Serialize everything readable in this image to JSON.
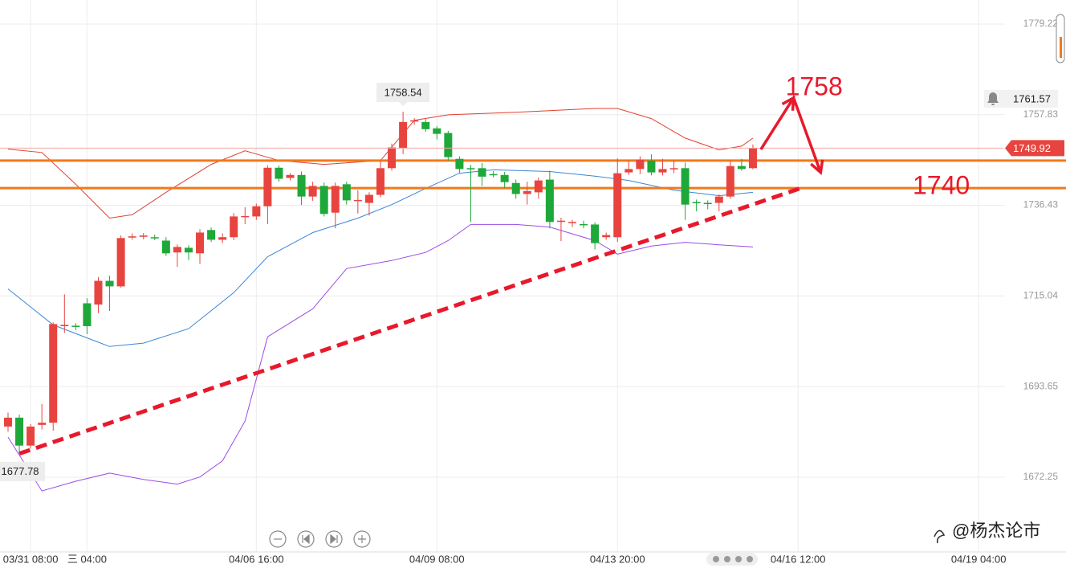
{
  "chart_data": {
    "type": "candlestick",
    "categories": [
      null,
      null,
      "03/31 08:00",
      null,
      null,
      null,
      null,
      "三 04:00",
      null,
      null,
      null,
      null,
      null,
      null,
      null,
      null,
      null,
      null,
      null,
      null,
      null,
      null,
      "04/06 16:00",
      null,
      null,
      null,
      null,
      null,
      null,
      null,
      null,
      null,
      null,
      null,
      null,
      null,
      null,
      null,
      "04/09 08:00",
      null,
      null,
      null,
      null,
      null,
      null,
      null,
      null,
      null,
      null,
      null,
      null,
      null,
      null,
      null,
      "04/13 20:00",
      null,
      null,
      null,
      null,
      null,
      null,
      null,
      null,
      null,
      null,
      null,
      null,
      null,
      null,
      null,
      "04/16 12:00",
      null,
      null,
      null,
      null,
      null,
      null,
      null,
      null,
      null,
      null,
      null,
      null,
      null,
      null,
      null,
      "04/19 04:00",
      null,
      null,
      null
    ],
    "open": [
      1684.2,
      1686.3,
      1679.7,
      1684.6,
      1685.1,
      1707.9,
      1708.0,
      1713.3,
      1713.0,
      1718.6,
      1717.3,
      1728.9,
      1729.0,
      1728.9,
      1728.1,
      1725.3,
      1726.4,
      1725.1,
      1730.6,
      1728.3,
      1728.9,
      1733.7,
      1733.8,
      1736.2,
      1745.3,
      1742.9,
      1743.6,
      1738.5,
      1741.0,
      1734.7,
      1741.4,
      1737.5,
      1737.0,
      1738.9,
      1745.2,
      1749.9,
      1756.2,
      1756.1,
      1754.6,
      1753.5,
      1747.4,
      1745.2,
      1745.2,
      1743.8,
      1743.6,
      1741.7,
      1739.1,
      1739.5,
      1742.5,
      1732.6,
      1732.3,
      1732.0,
      1731.9,
      1728.9,
      1728.9,
      1744.2,
      1745.0,
      1747.0,
      1744.2,
      1745.0,
      1745.2,
      1737.2,
      1737.0,
      1737.0,
      1738.5,
      1745.7,
      1745.2,
      null,
      null,
      null,
      null,
      null,
      null,
      null,
      null,
      null,
      null,
      null,
      null,
      null,
      null,
      null,
      null,
      null,
      null,
      null,
      null,
      null,
      null,
      null
    ],
    "high": [
      1687.5,
      1687.0,
      1684.8,
      1689.5,
      1708.8,
      1715.4,
      1708.6,
      1714.5,
      1719.5,
      1719.8,
      1729.3,
      1729.8,
      1729.9,
      1729.5,
      1728.9,
      1727.2,
      1727.0,
      1730.8,
      1731.2,
      1729.8,
      1734.6,
      1736.0,
      1736.8,
      1745.9,
      1745.8,
      1744.0,
      1744.4,
      1742.0,
      1741.8,
      1741.8,
      1742.0,
      1740.0,
      1739.5,
      1747.0,
      1751.0,
      1758.54,
      1757.0,
      1756.8,
      1755.1,
      1754.0,
      1748.0,
      1746.0,
      1746.4,
      1744.5,
      1744.3,
      1742.5,
      1742.0,
      1743.0,
      1744.6,
      1733.5,
      1733.0,
      1732.8,
      1732.4,
      1730.0,
      1747.5,
      1747.0,
      1748.0,
      1748.5,
      1747.4,
      1747.0,
      1746.5,
      1737.8,
      1737.6,
      1739.0,
      1747.0,
      1747.4,
      1750.8,
      null,
      null,
      null,
      null,
      null,
      null,
      null,
      null,
      null,
      null,
      null,
      null,
      null,
      null,
      null,
      null,
      null,
      null,
      null,
      null,
      null,
      null,
      null
    ],
    "low": [
      1683.0,
      1677.78,
      1679.0,
      1683.5,
      1683.2,
      1706.3,
      1707.0,
      1706.0,
      1711.0,
      1711.5,
      1717.0,
      1728.3,
      1728.4,
      1728.2,
      1724.5,
      1721.9,
      1723.5,
      1722.6,
      1727.8,
      1727.5,
      1728.2,
      1732.0,
      1733.0,
      1732.0,
      1742.0,
      1742.3,
      1736.5,
      1737.5,
      1733.8,
      1731.0,
      1736.6,
      1734.5,
      1734.0,
      1738.3,
      1744.6,
      1748.5,
      1755.5,
      1753.8,
      1752.0,
      1747.0,
      1744.0,
      1732.5,
      1741.0,
      1743.0,
      1740.5,
      1738.0,
      1736.6,
      1738.0,
      1731.0,
      1728.0,
      1731.3,
      1731.0,
      1726.0,
      1728.3,
      1727.8,
      1743.6,
      1743.8,
      1743.5,
      1743.5,
      1744.0,
      1733.0,
      1735.0,
      1735.5,
      1735.0,
      1738.0,
      1744.6,
      1744.9,
      null,
      null,
      null,
      null,
      null,
      null,
      null,
      null,
      null,
      null,
      null,
      null,
      null,
      null,
      null,
      null,
      null,
      null,
      null,
      null,
      null,
      null,
      null
    ],
    "close": [
      1686.3,
      1679.7,
      1684.2,
      1685.1,
      1708.4,
      1708.2,
      1707.9,
      1707.9,
      1718.6,
      1717.3,
      1728.7,
      1729.1,
      1729.3,
      1728.7,
      1725.1,
      1726.6,
      1725.3,
      1730.0,
      1728.3,
      1728.9,
      1733.8,
      1733.9,
      1736.2,
      1745.3,
      1742.7,
      1743.6,
      1738.5,
      1741.0,
      1734.4,
      1741.0,
      1737.6,
      1737.7,
      1738.9,
      1745.2,
      1750.1,
      1756.1,
      1756.5,
      1754.4,
      1753.3,
      1747.8,
      1745.0,
      1745.0,
      1743.2,
      1743.6,
      1741.9,
      1739.1,
      1739.8,
      1742.3,
      1732.5,
      1732.8,
      1732.5,
      1731.9,
      1727.5,
      1729.4,
      1744.0,
      1745.0,
      1747.2,
      1744.2,
      1745.0,
      1745.2,
      1736.6,
      1737.0,
      1736.8,
      1738.5,
      1745.7,
      1745.0,
      1749.92,
      null,
      null,
      null,
      null,
      null,
      null,
      null,
      null,
      null,
      null,
      null,
      null,
      null,
      null,
      null,
      null,
      null,
      null,
      null,
      null,
      null,
      null,
      null
    ],
    "up_color": "#e8443f",
    "down_color": "#1ea83a",
    "bands": [
      {
        "color": "#e0412f",
        "x": [
          0,
          3,
          6,
          9,
          11,
          14,
          18,
          21,
          24,
          28,
          33,
          36,
          39,
          45,
          52,
          54,
          57,
          60,
          63,
          65,
          66
        ],
        "values": [
          1749.7,
          1748.9,
          1741.4,
          1733.4,
          1734.2,
          1739.5,
          1746.1,
          1749.3,
          1747.0,
          1746.1,
          1747.0,
          1756.5,
          1757.8,
          1758.4,
          1759.3,
          1759.3,
          1756.9,
          1752.3,
          1749.5,
          1750.4,
          1752.3
        ]
      },
      {
        "color": "#3b86d8",
        "x": [
          0,
          4,
          9,
          12,
          16,
          20,
          23,
          27,
          31,
          34,
          37,
          40,
          43,
          48,
          52,
          55,
          59,
          63,
          66
        ],
        "values": [
          1716.7,
          1708.2,
          1703.1,
          1703.9,
          1707.3,
          1715.8,
          1724.3,
          1730.0,
          1733.4,
          1736.6,
          1740.4,
          1744.0,
          1744.8,
          1744.4,
          1743.3,
          1742.3,
          1740.0,
          1738.7,
          1739.5
        ]
      },
      {
        "color": "#9b4be8",
        "x": [
          0,
          3,
          6,
          9,
          12,
          15,
          17,
          19,
          21,
          23,
          27,
          30,
          34,
          37,
          39,
          41,
          45,
          48,
          52,
          54,
          57,
          60,
          63,
          66
        ],
        "values": [
          1681.7,
          1669.0,
          1671.3,
          1673.2,
          1671.7,
          1670.6,
          1672.3,
          1676.1,
          1685.5,
          1705.4,
          1712.0,
          1721.5,
          1723.4,
          1725.3,
          1728.1,
          1731.9,
          1731.9,
          1731.3,
          1728.1,
          1724.9,
          1726.8,
          1727.7,
          1727.1,
          1726.6
        ]
      }
    ],
    "ylim": [
      1654.6,
      1784.9
    ],
    "yticks": [
      1779.22,
      1757.83,
      1736.43,
      1715.04,
      1693.65,
      1672.25
    ],
    "grid": true,
    "levels": [
      1747.0,
      1740.5
    ],
    "level_color": "#f07a1a",
    "alert_price": 1761.57,
    "trendline": {
      "x": [
        1,
        70.6
      ],
      "values": [
        1677.8,
        1740.8
      ]
    },
    "arrow": {
      "x": [
        66.7,
        69.6,
        72.0
      ],
      "values": [
        1749.6,
        1761.8,
        1744.2
      ]
    },
    "annotations": [
      "1758",
      "1740"
    ],
    "annotation_color": "#e8192c",
    "high_index": 35,
    "low_index": 1,
    "watermark": "@杨杰论市"
  }
}
